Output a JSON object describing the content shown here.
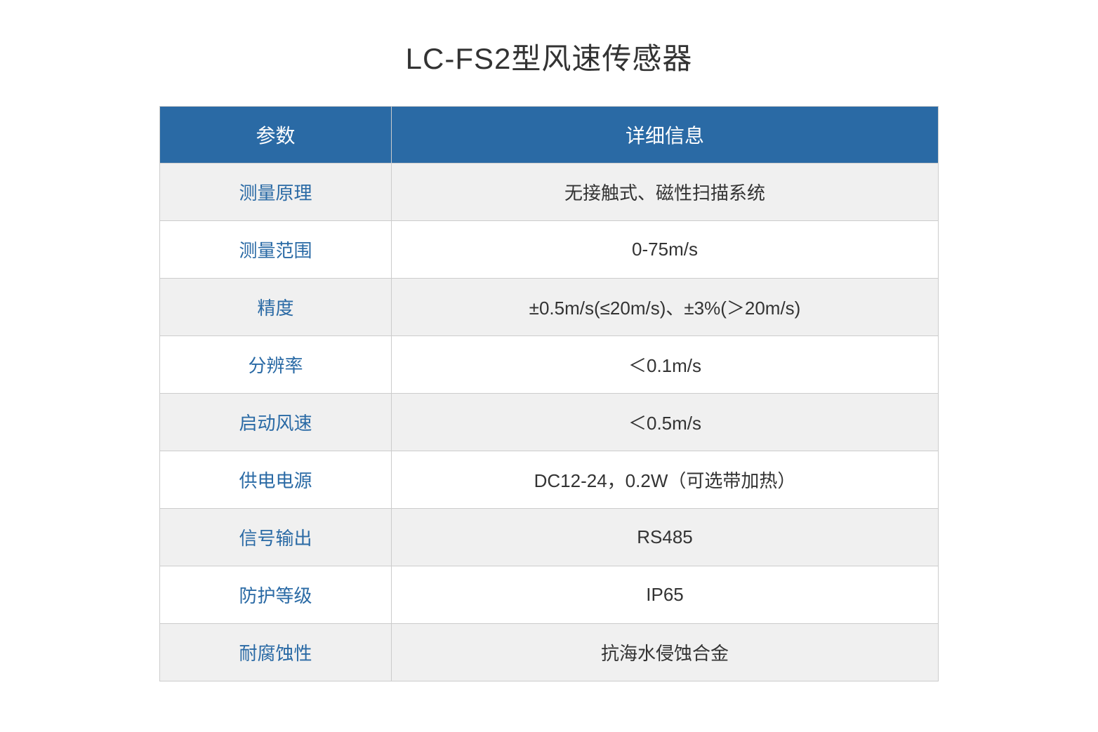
{
  "title": "LC-FS2型风速传感器",
  "table": {
    "headers": {
      "param": "参数",
      "detail": "详细信息"
    },
    "rows": [
      {
        "param": "测量原理",
        "value": "无接触式、磁性扫描系统"
      },
      {
        "param": "测量范围",
        "value": "0-75m/s"
      },
      {
        "param": "精度",
        "value": "±0.5m/s(≤20m/s)、±3%(＞20m/s)"
      },
      {
        "param": "分辨率",
        "value": "＜0.1m/s"
      },
      {
        "param": "启动风速",
        "value": "＜0.5m/s"
      },
      {
        "param": "供电电源",
        "value": "DC12-24，0.2W（可选带加热）"
      },
      {
        "param": "信号输出",
        "value": "RS485"
      },
      {
        "param": "防护等级",
        "value": "IP65"
      },
      {
        "param": "耐腐蚀性",
        "value": "抗海水侵蚀合金"
      }
    ]
  },
  "style": {
    "header_bg": "#2a6aa5",
    "header_text": "#ffffff",
    "param_text": "#2a6aa5",
    "value_text": "#333333",
    "border_color": "#cccccc",
    "row_alt_bg": "#f0f0f0",
    "title_fontsize": 42,
    "header_fontsize": 28,
    "cell_fontsize": 26
  }
}
